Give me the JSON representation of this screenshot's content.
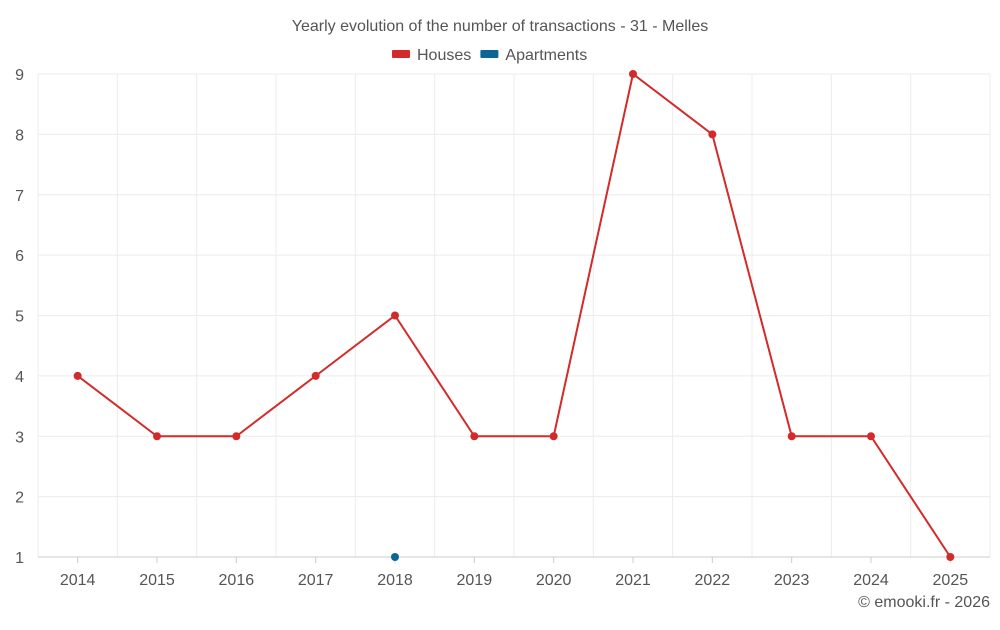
{
  "colors": {
    "houses": "#d32a2a",
    "apartments": "#0b6696",
    "grid": "#ececec",
    "text": "#555555"
  },
  "chart_data": {
    "type": "line",
    "title": "Yearly evolution of the number of transactions - 31 - Melles",
    "xlabel": "",
    "ylabel": "",
    "categories": [
      "2014",
      "2015",
      "2016",
      "2017",
      "2018",
      "2019",
      "2020",
      "2021",
      "2022",
      "2023",
      "2024",
      "2025"
    ],
    "ylim": [
      1,
      9
    ],
    "yticks": [
      1,
      2,
      3,
      4,
      5,
      6,
      7,
      8,
      9
    ],
    "grid": true,
    "legend_position": "top-center",
    "series": [
      {
        "name": "Houses",
        "color": "#d32a2a",
        "values": [
          4,
          3,
          3,
          4,
          5,
          3,
          3,
          9,
          8,
          3,
          3,
          1
        ]
      },
      {
        "name": "Apartments",
        "color": "#0b6696",
        "values": [
          null,
          null,
          null,
          null,
          1,
          null,
          null,
          null,
          null,
          null,
          null,
          null
        ]
      }
    ]
  },
  "footer": {
    "credit": "© emooki.fr - 2026"
  }
}
